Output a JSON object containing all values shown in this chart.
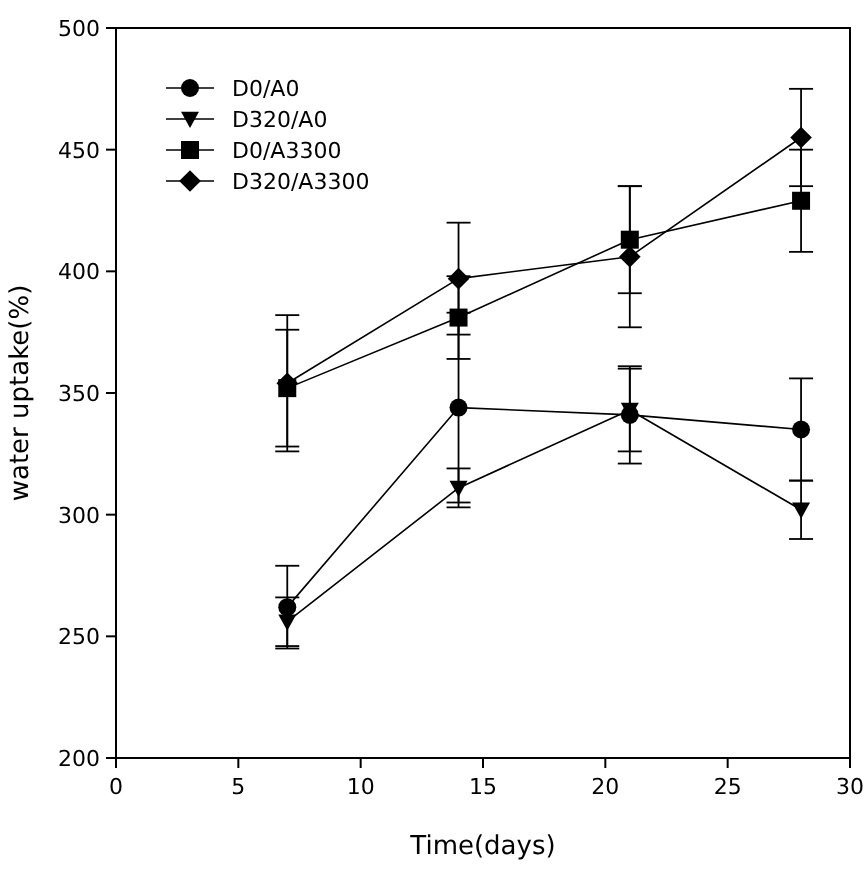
{
  "chart_data": {
    "type": "line",
    "xlabel": "Time(days)",
    "ylabel": "water uptake(%)",
    "x": [
      7,
      14,
      21,
      28
    ],
    "xlim": [
      0,
      30
    ],
    "xticks": [
      0,
      5,
      10,
      15,
      20,
      25,
      30
    ],
    "ylim": [
      200,
      500
    ],
    "yticks": [
      200,
      250,
      300,
      350,
      400,
      450,
      500
    ],
    "grid": false,
    "legend": "top left",
    "series": [
      {
        "name": "D0/A0",
        "color": "#000000",
        "marker": "circle",
        "values": [
          262,
          344,
          341,
          335
        ],
        "errors": [
          17,
          39,
          20,
          21
        ]
      },
      {
        "name": "D320/A0",
        "color": "#000000",
        "marker": "triangle",
        "values": [
          256,
          311,
          343,
          302
        ],
        "errors": [
          10,
          8,
          17,
          12
        ]
      },
      {
        "name": "D0/A3300",
        "color": "#000000",
        "marker": "square",
        "values": [
          352,
          381,
          413,
          429
        ],
        "errors": [
          24,
          17,
          22,
          21
        ]
      },
      {
        "name": "D320/A3300",
        "color": "#000000",
        "marker": "diamond",
        "values": [
          354,
          397,
          406,
          455
        ],
        "errors": [
          28,
          23,
          29,
          20
        ]
      }
    ]
  }
}
